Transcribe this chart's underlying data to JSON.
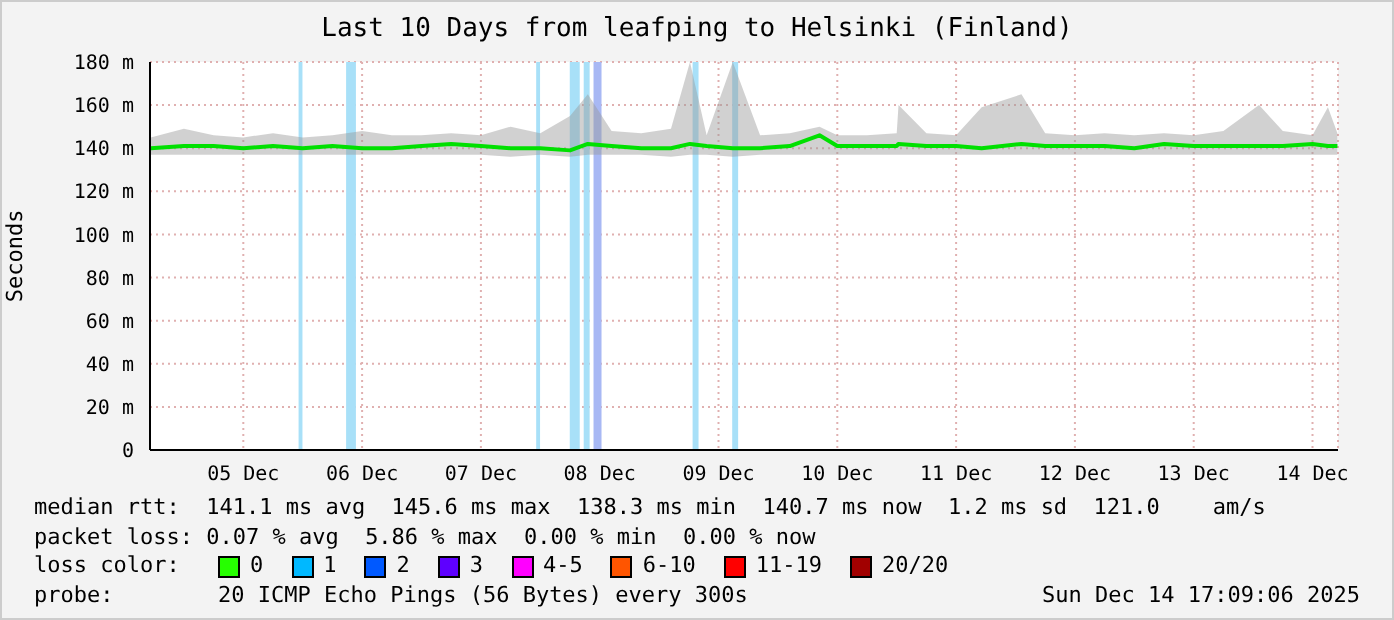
{
  "chart_data": {
    "type": "line",
    "title": "Last 10 Days from leafping to Helsinki (Finland)",
    "ylabel": "Seconds",
    "x": [
      "2025-12-04T17:17",
      "2025-12-05T00:00",
      "2025-12-05T06:00",
      "2025-12-05T12:00",
      "2025-12-05T18:00",
      "2025-12-06T00:00",
      "2025-12-06T06:00",
      "2025-12-06T12:00",
      "2025-12-06T18:00",
      "2025-12-07T00:00",
      "2025-12-07T06:00",
      "2025-12-07T12:00",
      "2025-12-07T18:00",
      "2025-12-08T00:00",
      "2025-12-08T06:00",
      "2025-12-08T09:36",
      "2025-12-08T14:24",
      "2025-12-08T20:24",
      "2025-12-09T02:24",
      "2025-12-09T06:14",
      "2025-12-09T09:36",
      "2025-12-09T14:53",
      "2025-12-09T20:24",
      "2025-12-10T02:24",
      "2025-12-10T08:24",
      "2025-12-10T12:00",
      "2025-12-10T18:00",
      "2025-12-11T00:00",
      "2025-12-11T00:22",
      "2025-12-11T06:00",
      "2025-12-11T12:00",
      "2025-12-11T17:10",
      "2025-12-12T01:12",
      "2025-12-12T06:00",
      "2025-12-12T12:00",
      "2025-12-12T18:00",
      "2025-12-13T00:00",
      "2025-12-13T06:00",
      "2025-12-13T12:00",
      "2025-12-13T18:00",
      "2025-12-14T01:12",
      "2025-12-14T06:00",
      "2025-12-14T12:00",
      "2025-12-14T15:07",
      "2025-12-14T17:02"
    ],
    "series": [
      {
        "name": null,
        "color": "#00e000",
        "values": [
          140,
          141,
          141,
          140,
          141,
          140,
          141,
          140,
          140,
          141,
          142,
          141,
          140,
          140,
          139,
          142,
          141,
          140,
          140,
          142,
          141,
          140,
          140,
          141,
          146,
          141,
          141,
          141,
          142,
          141,
          141,
          140,
          142,
          141,
          141,
          141,
          140,
          142,
          141,
          141,
          141,
          141,
          142,
          141,
          141
        ],
        "lower": [
          137,
          137,
          137,
          137,
          137,
          137,
          137,
          137,
          137,
          137,
          137,
          137,
          136,
          137,
          136,
          137,
          137,
          137,
          136,
          137,
          137,
          136,
          137,
          137,
          137,
          137,
          137,
          137,
          137,
          137,
          137,
          137,
          137,
          137,
          137,
          137,
          137,
          137,
          137,
          137,
          137,
          137,
          137,
          137,
          137
        ],
        "upper": [
          145,
          149,
          146,
          145,
          147,
          145,
          146,
          148,
          146,
          146,
          147,
          146,
          150,
          147,
          155,
          165,
          148,
          147,
          149,
          180,
          146,
          180,
          146,
          147,
          150,
          146,
          146,
          147,
          160,
          147,
          146,
          159,
          165,
          147,
          146,
          147,
          146,
          147,
          146,
          148,
          160,
          148,
          146,
          159,
          147
        ]
      }
    ],
    "xlim": [
      "2025-12-04T17:09",
      "2025-12-14T17:09"
    ],
    "xticks": [
      {
        "value": "2025-12-05T12:00",
        "label": "05 Dec"
      },
      {
        "value": "2025-12-06T12:00",
        "label": "06 Dec"
      },
      {
        "value": "2025-12-07T12:00",
        "label": "07 Dec"
      },
      {
        "value": "2025-12-08T12:00",
        "label": "08 Dec"
      },
      {
        "value": "2025-12-09T12:00",
        "label": "09 Dec"
      },
      {
        "value": "2025-12-10T12:00",
        "label": "10 Dec"
      },
      {
        "value": "2025-12-11T12:00",
        "label": "11 Dec"
      },
      {
        "value": "2025-12-12T12:00",
        "label": "12 Dec"
      },
      {
        "value": "2025-12-13T12:00",
        "label": "13 Dec"
      },
      {
        "value": "2025-12-14T12:00",
        "label": "14 Dec"
      }
    ],
    "ylim": [
      0,
      180
    ],
    "yticks": [
      0,
      {
        "value": 20,
        "label": "20 m"
      },
      {
        "value": 40,
        "label": "40 m"
      },
      {
        "value": 60,
        "label": "60 m"
      },
      {
        "value": 80,
        "label": "80 m"
      },
      {
        "value": 100,
        "label": "100 m"
      },
      {
        "value": 120,
        "label": "120 m"
      },
      {
        "value": 140,
        "label": "140 m"
      },
      {
        "value": 160,
        "label": "160 m"
      },
      {
        "value": 180,
        "label": "180 m"
      }
    ],
    "grid": true,
    "marker": "none",
    "line_style": "solid",
    "legend": false,
    "bands": [
      {
        "axis": "x",
        "from": "2025-12-05T23:10",
        "to": "2025-12-05T23:57",
        "color": "#a8e0f8"
      },
      {
        "axis": "x",
        "from": "2025-12-06T08:46",
        "to": "2025-12-06T10:45",
        "color": "#a8e0f8"
      },
      {
        "axis": "x",
        "from": "2025-12-07T23:10",
        "to": "2025-12-07T23:57",
        "color": "#a8e0f8"
      },
      {
        "axis": "x",
        "from": "2025-12-08T05:57",
        "to": "2025-12-08T07:58",
        "color": "#a8e0f8"
      },
      {
        "axis": "x",
        "from": "2025-12-08T08:46",
        "to": "2025-12-08T09:58",
        "color": "#a8e0f8"
      },
      {
        "axis": "x",
        "from": "2025-12-08T10:45",
        "to": "2025-12-08T12:22",
        "color": "#a8b8f4"
      },
      {
        "axis": "x",
        "from": "2025-12-09T06:46",
        "to": "2025-12-09T07:58",
        "color": "#a8e0f8"
      },
      {
        "axis": "x",
        "from": "2025-12-09T14:46",
        "to": "2025-12-09T15:58",
        "color": "#a8e0f8"
      }
    ],
    "annotations": [
      "median rtt:  141.1 ms avg  145.6 ms max  138.3 ms min  140.7 ms now  1.2 ms sd  121.0    am/s",
      "packet loss: 0.07 % avg  5.86 % max  0.00 % min  0.00 % now",
      "loss color:",
      "0",
      "1",
      "2",
      "3",
      "4-5",
      "6-10",
      "11-19",
      "20/20",
      "probe:",
      "20 ICMP Echo Pings (56 Bytes) every 300s",
      "Sun Dec 14 17:09:06 2025"
    ]
  }
}
